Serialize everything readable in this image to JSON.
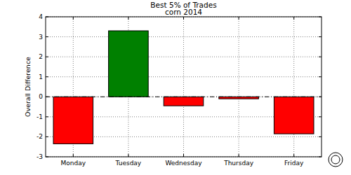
{
  "chart_data": {
    "type": "bar",
    "title": "Best 5% of Trades",
    "subtitle": "corn 2014",
    "y_label": "Overall Difference",
    "categories": [
      "Monday",
      "Tuesday",
      "Wednesday",
      "Thursday",
      "Friday"
    ],
    "values": [
      -2.35,
      3.3,
      -0.45,
      -0.1,
      -1.85
    ],
    "colors": [
      "#ff0000",
      "#008000",
      "#ff0000",
      "#ff0000",
      "#ff0000"
    ],
    "ylim": [
      -3,
      4
    ],
    "yticks": [
      -3,
      -2,
      -1,
      0,
      1,
      2,
      3,
      4
    ],
    "grid": true
  }
}
